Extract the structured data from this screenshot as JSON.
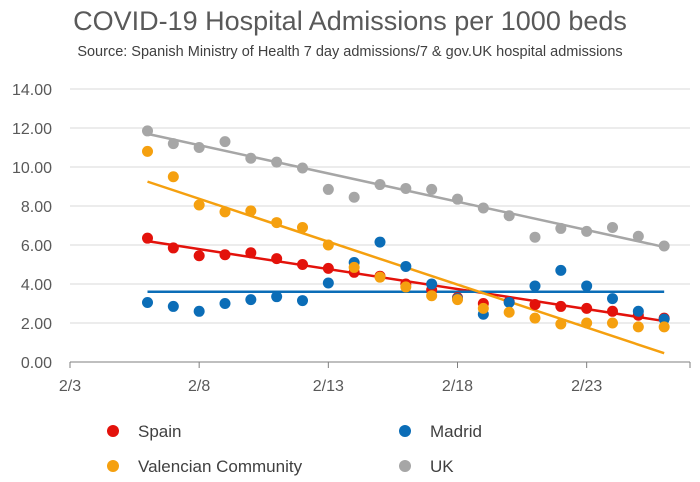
{
  "chart_data": {
    "type": "scatter",
    "title": "COVID-19 Hospital Admissions per 1000 beds",
    "subtitle": "Source: Spanish Ministry of Health 7 day admissions/7 & gov.UK hospital admissions",
    "xlabel": "",
    "ylabel": "",
    "x_ticks": [
      "2/3",
      "2/8",
      "2/13",
      "2/18",
      "2/23"
    ],
    "x_tick_days": [
      3,
      8,
      13,
      18,
      23
    ],
    "xlim": [
      3,
      27
    ],
    "ylim": [
      0,
      14
    ],
    "y_ticks": [
      "0.00",
      "2.00",
      "4.00",
      "6.00",
      "8.00",
      "10.00",
      "12.00",
      "14.00"
    ],
    "grid": "horizontal",
    "legend_position": "bottom",
    "x": [
      6,
      7,
      8,
      9,
      10,
      11,
      12,
      13,
      14,
      15,
      16,
      17,
      18,
      19,
      20,
      21,
      22,
      23,
      24,
      25,
      26
    ],
    "series": [
      {
        "name": "Spain",
        "color": "#e3120b",
        "values": [
          6.35,
          5.85,
          5.45,
          5.5,
          5.6,
          5.3,
          5.0,
          4.8,
          4.6,
          4.4,
          4.0,
          3.7,
          3.3,
          3.0,
          3.1,
          2.95,
          2.85,
          2.75,
          2.6,
          2.4,
          2.25
        ],
        "trend": [
          6.2,
          2.1
        ]
      },
      {
        "name": "Madrid",
        "color": "#0b6db7",
        "values": [
          3.05,
          2.85,
          2.6,
          3.0,
          3.2,
          3.35,
          3.15,
          4.05,
          5.1,
          6.15,
          4.9,
          4.0,
          3.25,
          2.45,
          3.05,
          3.9,
          4.7,
          3.9,
          3.25,
          2.6,
          2.2
        ],
        "trend": [
          3.6,
          3.6
        ]
      },
      {
        "name": "Valencian Community",
        "color": "#f5a00f",
        "values": [
          10.8,
          9.5,
          8.05,
          7.7,
          7.75,
          7.15,
          6.9,
          6.0,
          4.85,
          4.35,
          3.85,
          3.4,
          3.2,
          2.75,
          2.55,
          2.25,
          1.95,
          2.0,
          2.0,
          1.8,
          1.8
        ],
        "trend": [
          9.25,
          0.45
        ]
      },
      {
        "name": "UK",
        "color": "#a6a6a6",
        "values": [
          11.85,
          11.2,
          11.0,
          11.3,
          10.45,
          10.25,
          9.95,
          8.85,
          8.45,
          9.1,
          8.9,
          8.85,
          8.35,
          7.9,
          7.5,
          6.4,
          6.85,
          6.7,
          6.9,
          6.45,
          5.95
        ],
        "trend": [
          11.7,
          5.9
        ]
      }
    ]
  }
}
